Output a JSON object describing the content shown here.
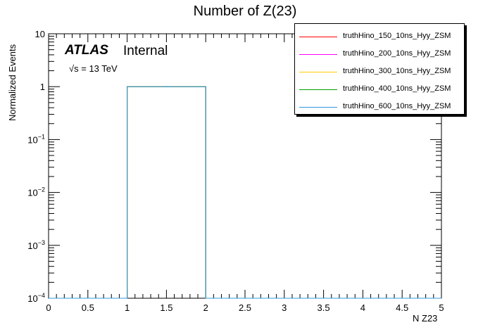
{
  "chart_data": {
    "type": "bar",
    "title": "Number of Z(23)",
    "xlabel": "N Z23",
    "ylabel": "Normalized Events",
    "xlim": [
      0,
      5
    ],
    "ylim": [
      0.0001,
      10
    ],
    "yscale": "log",
    "grid": false,
    "legend_position": "top-right",
    "x_ticks": [
      "0",
      "0.5",
      "1",
      "1.5",
      "2",
      "2.5",
      "3",
      "3.5",
      "4",
      "4.5",
      "5"
    ],
    "y_ticks": [
      {
        "mant": "10",
        "exp": ""
      },
      {
        "mant": "1",
        "exp": ""
      },
      {
        "mant": "10",
        "exp": "−1"
      },
      {
        "mant": "10",
        "exp": "−2"
      },
      {
        "mant": "10",
        "exp": "−3"
      },
      {
        "mant": "10",
        "exp": "−4"
      }
    ],
    "bin_edges": [
      0,
      1,
      2,
      3,
      4,
      5
    ],
    "series": [
      {
        "name": "truthHino_150_10ns_Hyy_ZSM",
        "color": "#ff0000",
        "values": [
          0,
          1,
          0,
          0,
          0
        ]
      },
      {
        "name": "truthHino_200_10ns_Hyy_ZSM",
        "color": "#ff00ff",
        "values": [
          0,
          1,
          0,
          0,
          0
        ]
      },
      {
        "name": "truthHino_300_10ns_Hyy_ZSM",
        "color": "#ffcc00",
        "values": [
          0,
          1,
          0,
          0,
          0
        ]
      },
      {
        "name": "truthHino_400_10ns_Hyy_ZSM",
        "color": "#00a000",
        "values": [
          0,
          1,
          0,
          0,
          0
        ]
      },
      {
        "name": "truthHino_600_10ns_Hyy_ZSM",
        "color": "#3399dd",
        "values": [
          0,
          1,
          0,
          0,
          0
        ]
      }
    ]
  },
  "labels": {
    "atlas": "ATLAS",
    "internal": "Internal",
    "energy": "√s = 13 TeV"
  }
}
